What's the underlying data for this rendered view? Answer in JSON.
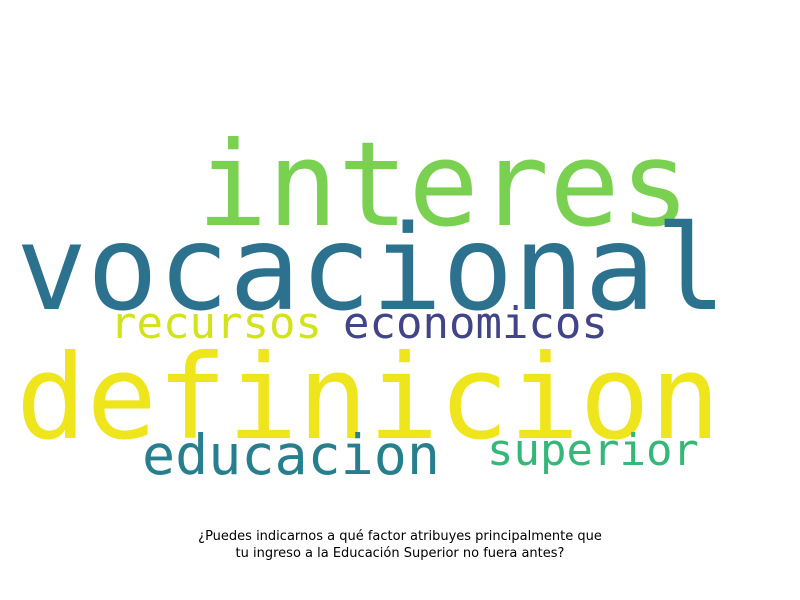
{
  "words": [
    {
      "id": "interes",
      "text": "interes",
      "color": "#7ad151"
    },
    {
      "id": "vocacional",
      "text": "vocacional",
      "color": "#2c728e"
    },
    {
      "id": "recursos",
      "text": "recursos",
      "color": "#d2e21b"
    },
    {
      "id": "economicos",
      "text": "economicos",
      "color": "#414487"
    },
    {
      "id": "definicion",
      "text": "definicion",
      "color": "#efe51c"
    },
    {
      "id": "educacion",
      "text": "educacion",
      "color": "#277f8e"
    },
    {
      "id": "superior",
      "text": "superior",
      "color": "#35b779"
    }
  ],
  "caption": {
    "line1": "¿Puedes indicarnos a qué factor atribuyes principalmente que",
    "line2": "tu ingreso a la Educación Superior no fuera antes?"
  }
}
